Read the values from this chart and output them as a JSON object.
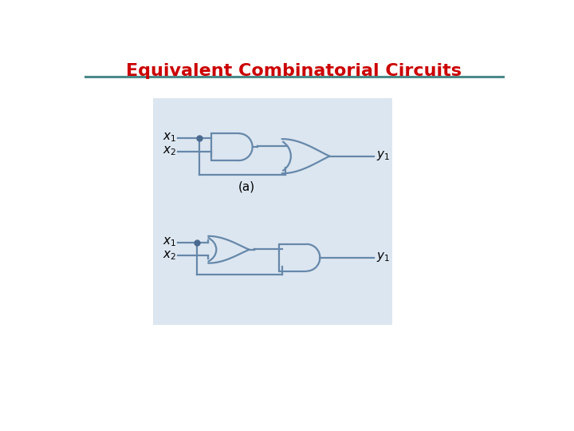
{
  "title": "Equivalent Combinatorial Circuits",
  "title_color": "#cc0000",
  "title_fontsize": 16,
  "bg_color": "#ffffff",
  "panel_bg": "#dce6f0",
  "line_color": "#6688aa",
  "gate_color": "#6688aa",
  "label_color": "#000000",
  "line_width": 1.6,
  "separator_color": "#4a8a8a",
  "dot_color": "#4a6a90",
  "dot_size": 5
}
